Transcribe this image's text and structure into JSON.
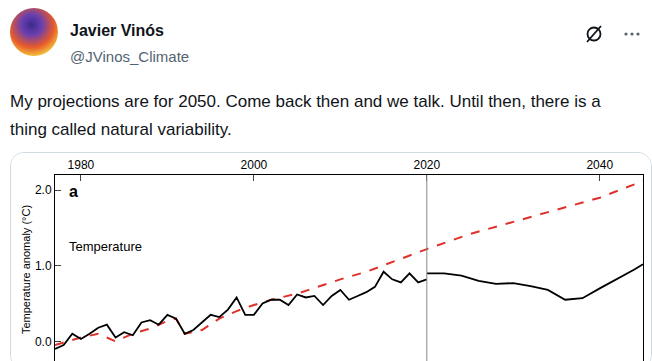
{
  "post": {
    "name": "Javier Vinós",
    "handle": "@JVinos_Climate",
    "text": "My projections are for 2050. Come back then and we talk. Until then, there is a thing called natural variability."
  },
  "chart_data": {
    "type": "line",
    "panel_label": "a",
    "annotation": "Temperature",
    "y_label": "Temperature anomaly (°C)",
    "xlim": [
      1977,
      2045
    ],
    "xticks": [
      1980,
      2000,
      2020,
      2040
    ],
    "ylim": [
      -0.3,
      2.2
    ],
    "yticks": [
      {
        "value": 0,
        "label": "0.0"
      },
      {
        "value": 1,
        "label": "1.0"
      },
      {
        "value": 2,
        "label": "2.0"
      }
    ],
    "divider_x": 2020,
    "series": [
      {
        "color": "#e0302a",
        "line_style": "dash",
        "x": [
          1977,
          1980,
          1982,
          1984,
          1986,
          1988,
          1990,
          1991,
          1992,
          1994,
          1996,
          1998,
          2000,
          2002,
          2005,
          2008,
          2010,
          2013,
          2016,
          2019,
          2020,
          2025,
          2030,
          2035,
          2040,
          2045
        ],
        "values": [
          -0.05,
          0.05,
          0.1,
          0.0,
          0.1,
          0.17,
          0.27,
          0.3,
          0.1,
          0.15,
          0.3,
          0.4,
          0.48,
          0.55,
          0.63,
          0.75,
          0.82,
          0.92,
          1.05,
          1.18,
          1.22,
          1.42,
          1.58,
          1.75,
          1.9,
          2.12
        ]
      },
      {
        "color": "#000000",
        "line_style": "solid",
        "x": [
          1977,
          1978,
          1979,
          1980,
          1981,
          1982,
          1983,
          1984,
          1985,
          1986,
          1987,
          1988,
          1989,
          1990,
          1991,
          1992,
          1993,
          1994,
          1995,
          1996,
          1997,
          1998,
          1999,
          2000,
          2001,
          2002,
          2003,
          2004,
          2005,
          2006,
          2007,
          2008,
          2009,
          2010,
          2011,
          2012,
          2013,
          2014,
          2015,
          2016,
          2017,
          2018,
          2019,
          2020
        ],
        "values": [
          -0.1,
          -0.05,
          0.1,
          0.03,
          0.1,
          0.18,
          0.22,
          0.05,
          0.12,
          0.08,
          0.25,
          0.28,
          0.22,
          0.35,
          0.3,
          0.1,
          0.15,
          0.25,
          0.35,
          0.32,
          0.42,
          0.58,
          0.35,
          0.35,
          0.5,
          0.55,
          0.55,
          0.48,
          0.62,
          0.58,
          0.6,
          0.48,
          0.6,
          0.68,
          0.55,
          0.6,
          0.65,
          0.72,
          0.92,
          0.82,
          0.78,
          0.9,
          0.78,
          0.82
        ]
      },
      {
        "color": "#000000",
        "line_style": "solid",
        "x": [
          2020,
          2022,
          2024,
          2026,
          2028,
          2030,
          2032,
          2034,
          2036,
          2038,
          2040,
          2042,
          2044,
          2045
        ],
        "values": [
          0.9,
          0.9,
          0.87,
          0.8,
          0.76,
          0.77,
          0.73,
          0.68,
          0.55,
          0.57,
          0.7,
          0.82,
          0.95,
          1.02
        ]
      }
    ]
  }
}
